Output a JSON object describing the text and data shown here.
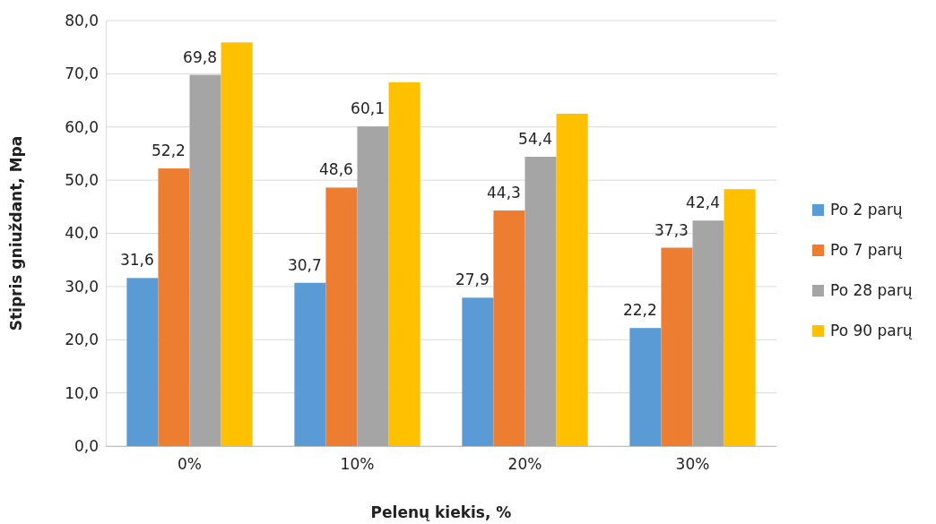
{
  "chart_data": {
    "type": "bar",
    "xlabel": "Pelenų kiekis, %",
    "ylabel": "Stipris gniuždant, Mpa",
    "categories": [
      "0%",
      "10%",
      "20%",
      "30%"
    ],
    "series": [
      {
        "name": "Po 2 parų",
        "color": "#5b9bd5",
        "values": [
          31.6,
          30.7,
          27.9,
          22.2
        ],
        "value_labels": [
          "31,6",
          "30,7",
          "27,9",
          "22,2"
        ]
      },
      {
        "name": "Po 7 parų",
        "color": "#ed7d31",
        "values": [
          52.2,
          48.6,
          44.3,
          37.3
        ],
        "value_labels": [
          "52,2",
          "48,6",
          "44,3",
          "37,3"
        ]
      },
      {
        "name": "Po 28 parų",
        "color": "#a5a5a5",
        "values": [
          69.8,
          60.1,
          54.4,
          42.4
        ],
        "value_labels": [
          "69,8",
          "60,1",
          "54,4",
          "42,4"
        ]
      },
      {
        "name": "Po 90 parų",
        "color": "#ffc000",
        "values": [
          75.9,
          68.4,
          62.5,
          48.3
        ]
      }
    ],
    "ylim": [
      0,
      80
    ],
    "yticks": [
      {
        "value": 0,
        "label": "0,0"
      },
      {
        "value": 10,
        "label": "10,0"
      },
      {
        "value": 20,
        "label": "20,0"
      },
      {
        "value": 30,
        "label": "30,0"
      },
      {
        "value": 40,
        "label": "40,0"
      },
      {
        "value": 50,
        "label": "50,0"
      },
      {
        "value": 60,
        "label": "60,0"
      },
      {
        "value": 70,
        "label": "70,0"
      },
      {
        "value": 80,
        "label": "80,0"
      }
    ],
    "grid": "y",
    "legend": "right"
  }
}
